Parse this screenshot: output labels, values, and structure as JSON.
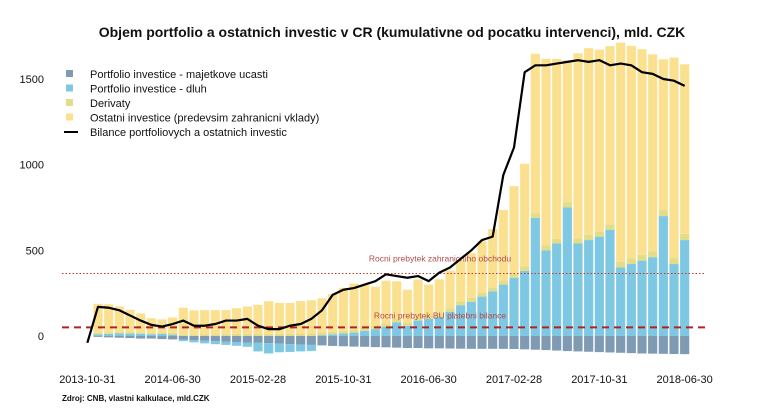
{
  "chart_data": {
    "type": "bar",
    "stacked": true,
    "title": "Objem portfolio a ostatnich investic v CR (kumulativne od pocatku intervenci), mld. CZK",
    "ylim": [
      -120,
      1750
    ],
    "yticks": [
      0,
      500,
      1000,
      1500
    ],
    "xtick_labels": [
      "2013-10-31",
      "2014-06-30",
      "2015-02-28",
      "2015-10-31",
      "2016-06-30",
      "2017-02-28",
      "2017-10-31",
      "2018-06-30"
    ],
    "xtick_index": [
      0,
      8,
      16,
      24,
      32,
      40,
      48,
      56
    ],
    "categories": [
      "2013-10-31",
      "2013-11-30",
      "2013-12-31",
      "2014-01-31",
      "2014-02-28",
      "2014-03-31",
      "2014-04-30",
      "2014-05-31",
      "2014-06-30",
      "2014-07-31",
      "2014-08-31",
      "2014-09-30",
      "2014-10-31",
      "2014-11-30",
      "2014-12-31",
      "2015-01-31",
      "2015-02-28",
      "2015-03-31",
      "2015-04-30",
      "2015-05-31",
      "2015-06-30",
      "2015-07-31",
      "2015-08-31",
      "2015-09-30",
      "2015-10-31",
      "2015-11-30",
      "2015-12-31",
      "2016-01-31",
      "2016-02-29",
      "2016-03-31",
      "2016-04-30",
      "2016-05-31",
      "2016-06-30",
      "2016-07-31",
      "2016-08-31",
      "2016-09-30",
      "2016-10-31",
      "2016-11-30",
      "2016-12-31",
      "2017-01-31",
      "2017-02-28",
      "2017-03-31",
      "2017-04-30",
      "2017-05-31",
      "2017-06-30",
      "2017-07-31",
      "2017-08-31",
      "2017-09-30",
      "2017-10-31",
      "2017-11-30",
      "2017-12-31",
      "2018-01-31",
      "2018-02-28",
      "2018-03-31",
      "2018-04-30",
      "2018-05-31",
      "2018-06-30"
    ],
    "series": [
      {
        "name": "Portfolio investice - majetkove ucasti",
        "color": "#7f9bb3",
        "values": [
          0,
          -5,
          -8,
          -10,
          -12,
          -15,
          -15,
          -18,
          -20,
          -22,
          -25,
          -28,
          -30,
          -32,
          -35,
          -38,
          -40,
          -42,
          -45,
          -48,
          -50,
          -52,
          -55,
          -58,
          -60,
          -62,
          -63,
          -65,
          -66,
          -68,
          -70,
          -70,
          -72,
          -72,
          -73,
          -74,
          -75,
          -75,
          -75,
          -75,
          -76,
          -78,
          -80,
          -82,
          -85,
          -88,
          -90,
          -92,
          -94,
          -96,
          -98,
          -100,
          -102,
          -103,
          -104,
          -105,
          -106
        ]
      },
      {
        "name": "Portfolio investice - dluh",
        "color": "#7ec8e3",
        "values": [
          0,
          10,
          12,
          15,
          14,
          13,
          10,
          12,
          8,
          -8,
          -12,
          -15,
          -18,
          -20,
          -22,
          -25,
          -50,
          -60,
          -50,
          -45,
          -40,
          -35,
          5,
          10,
          15,
          20,
          30,
          40,
          55,
          80,
          60,
          90,
          100,
          110,
          140,
          180,
          200,
          230,
          260,
          300,
          340,
          380,
          690,
          500,
          540,
          750,
          540,
          560,
          580,
          620,
          400,
          420,
          440,
          460,
          700,
          420,
          560
        ]
      },
      {
        "name": "Derivaty",
        "color": "#e3dc88",
        "values": [
          0,
          8,
          8,
          8,
          9,
          9,
          9,
          10,
          10,
          10,
          10,
          11,
          11,
          11,
          12,
          12,
          12,
          13,
          13,
          13,
          14,
          14,
          15,
          15,
          16,
          16,
          17,
          18,
          18,
          19,
          20,
          20,
          20,
          21,
          22,
          22,
          23,
          23,
          24,
          25,
          25,
          26,
          27,
          28,
          28,
          29,
          30,
          30,
          31,
          32,
          32,
          33,
          34,
          34,
          35,
          35,
          36
        ]
      },
      {
        "name": "Ostatni investice (predevsim zahranicni vklady)",
        "color": "#fbe18f",
        "values": [
          0,
          170,
          165,
          150,
          130,
          110,
          85,
          75,
          90,
          155,
          140,
          140,
          140,
          140,
          150,
          160,
          170,
          190,
          180,
          180,
          190,
          195,
          200,
          220,
          250,
          270,
          250,
          230,
          250,
          220,
          190,
          220,
          180,
          200,
          220,
          240,
          260,
          300,
          340,
          410,
          510,
          600,
          930,
          1090,
          1050,
          830,
          1080,
          1090,
          1060,
          1040,
          1280,
          1240,
          1200,
          1150,
          880,
          1170,
          990
        ]
      },
      {
        "name": "Bilance portfoliovych a ostatnich investic",
        "color": "#000000",
        "type": "line",
        "values": [
          -40,
          170,
          165,
          150,
          120,
          90,
          65,
          55,
          70,
          90,
          60,
          60,
          70,
          90,
          90,
          100,
          60,
          40,
          40,
          60,
          70,
          100,
          150,
          240,
          270,
          280,
          300,
          320,
          360,
          350,
          340,
          350,
          320,
          370,
          400,
          450,
          500,
          560,
          580,
          940,
          1100,
          1540,
          1580,
          1580,
          1590,
          1600,
          1610,
          1600,
          1610,
          1580,
          1590,
          1580,
          1540,
          1530,
          1500,
          1490,
          1460
        ]
      }
    ],
    "reference_lines": [
      {
        "label": "Rocni prebytek zahranicniho obchodu",
        "value": 365,
        "color": "#c0392b",
        "style": "dotted"
      },
      {
        "label": "Rocni prebytek BU platebni bilance",
        "value": 50,
        "color": "#b22222",
        "style": "dashed"
      }
    ],
    "legend_position": "top-left"
  },
  "source_text": "Zdroj: CNB, vlastni kalkulace, mld.CZK"
}
